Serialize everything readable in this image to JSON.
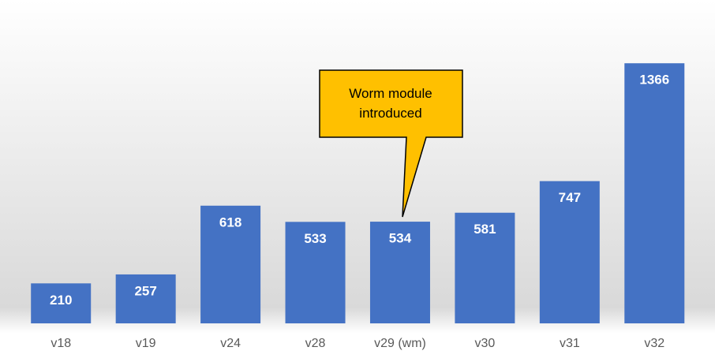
{
  "chart_data": {
    "type": "bar",
    "categories": [
      "v18",
      "v19",
      "v24",
      "v28",
      "v29 (wm)",
      "v30",
      "v31",
      "v32"
    ],
    "values": [
      210,
      257,
      618,
      533,
      534,
      581,
      747,
      1366
    ],
    "color": "#4472c4",
    "ylim": [
      0,
      1400
    ],
    "annotation": "Worm module introduced"
  }
}
